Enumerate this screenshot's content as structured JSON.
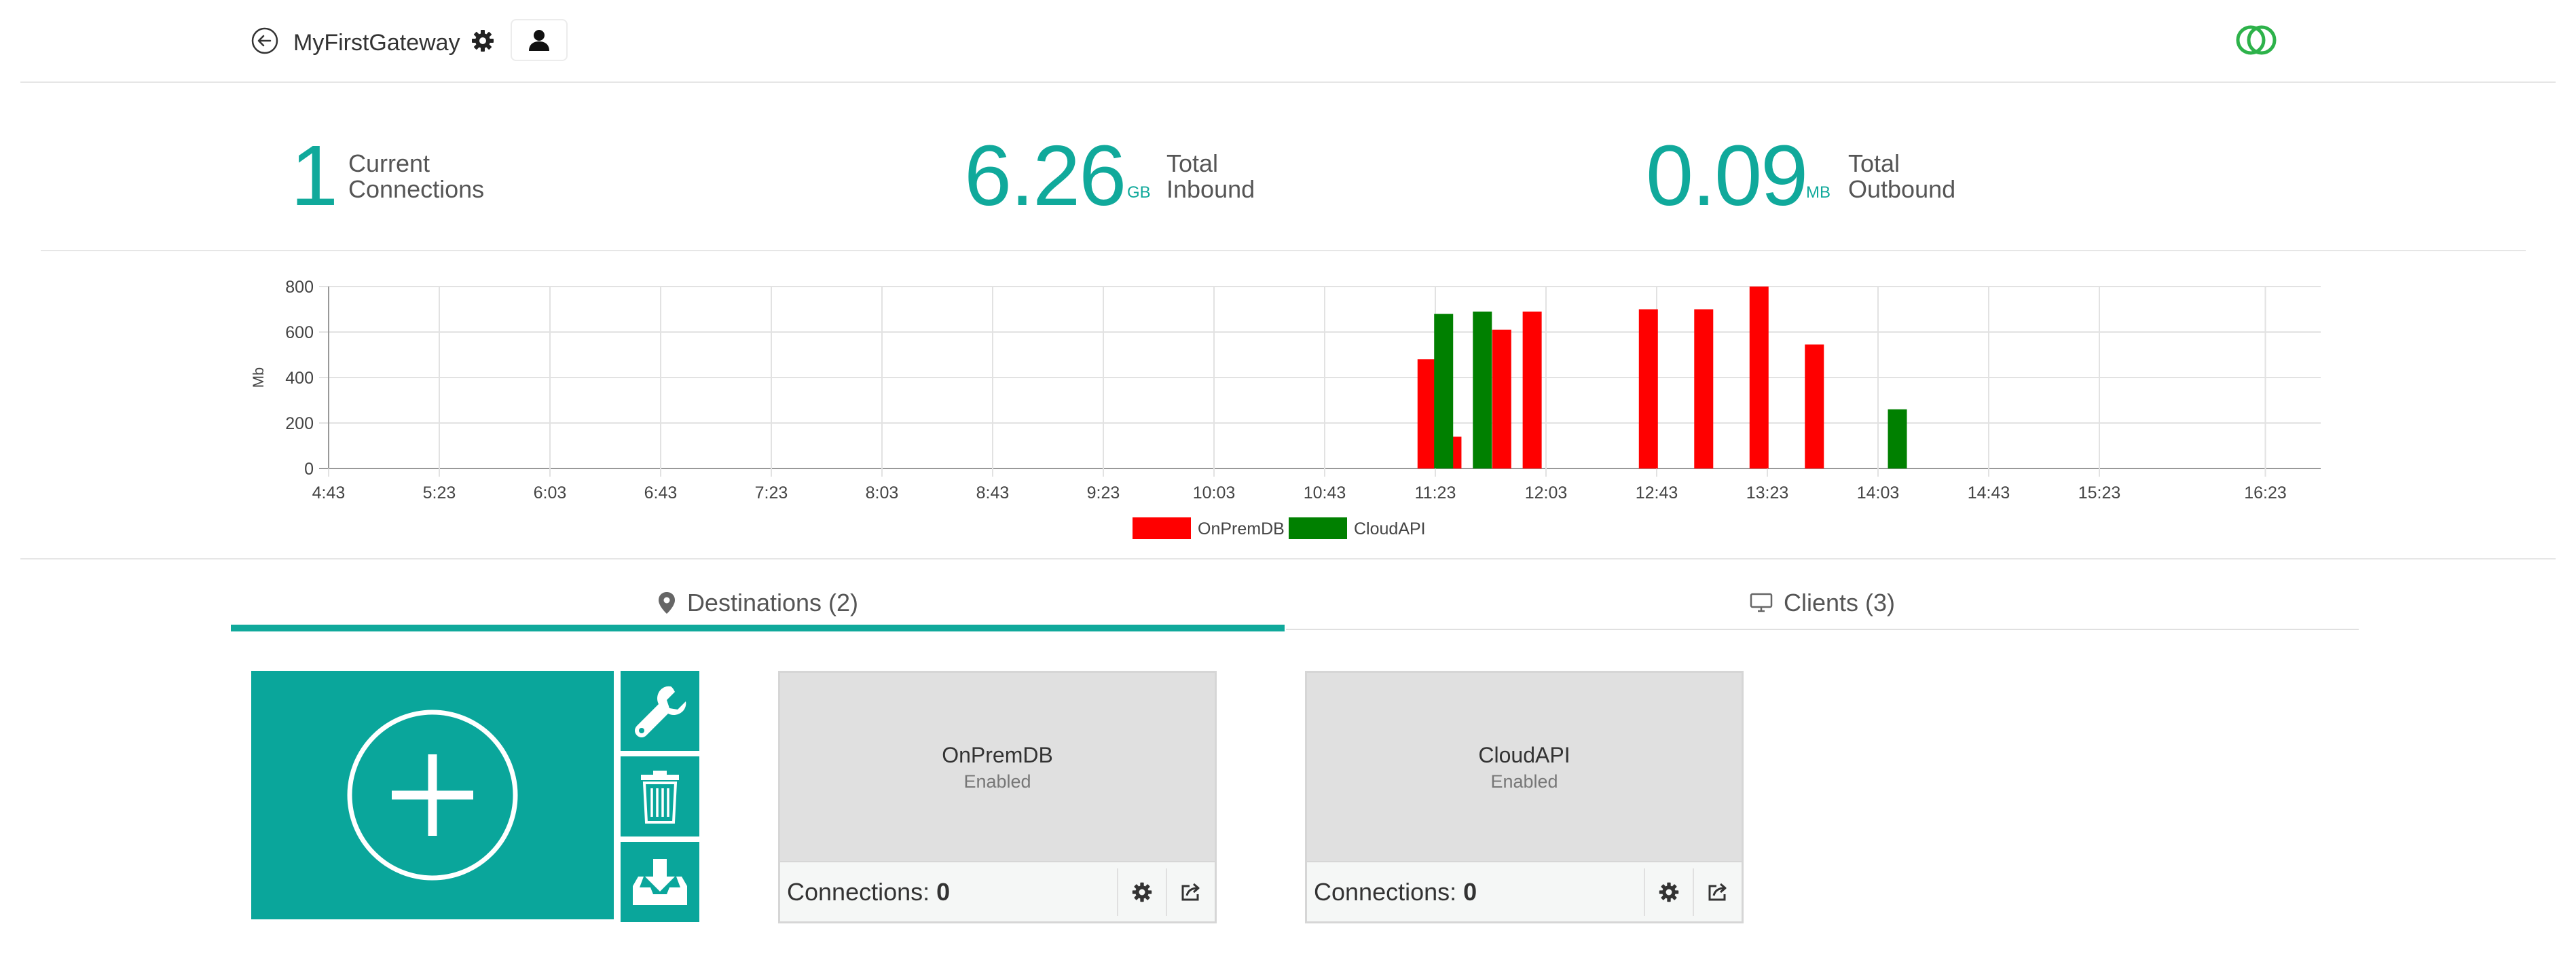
{
  "header": {
    "gateway_name": "MyFirstGateway",
    "icons": [
      "back-arrow-icon",
      "gear-icon",
      "user-icon",
      "linked-rings-logo"
    ]
  },
  "stats": {
    "connections": {
      "value": "1",
      "unit": "",
      "label_line1": "Current",
      "label_line2": "Connections"
    },
    "inbound": {
      "value": "6.26",
      "unit": "GB",
      "label_line1": "Total",
      "label_line2": "Inbound"
    },
    "outbound": {
      "value": "0.09",
      "unit": "MB",
      "label_line1": "Total",
      "label_line2": "Outbound"
    }
  },
  "chart_data": {
    "type": "bar",
    "ylabel": "Mb",
    "ylim": [
      0,
      800
    ],
    "yticks": [
      0,
      200,
      400,
      600,
      800
    ],
    "x_range_minutes": [
      283,
      1003
    ],
    "xticks": [
      {
        "label": "4:43",
        "t": 283
      },
      {
        "label": "5:23",
        "t": 323
      },
      {
        "label": "6:03",
        "t": 363
      },
      {
        "label": "6:43",
        "t": 403
      },
      {
        "label": "7:23",
        "t": 443
      },
      {
        "label": "8:03",
        "t": 483
      },
      {
        "label": "8:43",
        "t": 523
      },
      {
        "label": "9:23",
        "t": 563
      },
      {
        "label": "10:03",
        "t": 603
      },
      {
        "label": "10:43",
        "t": 643
      },
      {
        "label": "11:23",
        "t": 683
      },
      {
        "label": "12:03",
        "t": 723
      },
      {
        "label": "12:43",
        "t": 763
      },
      {
        "label": "13:23",
        "t": 803
      },
      {
        "label": "14:03",
        "t": 843
      },
      {
        "label": "14:43",
        "t": 883
      },
      {
        "label": "15:23",
        "t": 923
      },
      {
        "label": "16:23",
        "t": 983
      }
    ],
    "grid": true,
    "legend_position": "bottom-center",
    "series": [
      {
        "name": "OnPremDB",
        "color": "#ff0000",
        "points": [
          {
            "t": 680,
            "v": 480
          },
          {
            "t": 689,
            "v": 140
          },
          {
            "t": 707,
            "v": 610
          },
          {
            "t": 718,
            "v": 690
          },
          {
            "t": 760,
            "v": 700
          },
          {
            "t": 780,
            "v": 700
          },
          {
            "t": 800,
            "v": 800
          },
          {
            "t": 820,
            "v": 545
          }
        ]
      },
      {
        "name": "CloudAPI",
        "color": "#008000",
        "points": [
          {
            "t": 686,
            "v": 680
          },
          {
            "t": 700,
            "v": 690
          },
          {
            "t": 850,
            "v": 260
          }
        ]
      }
    ]
  },
  "tabs": [
    {
      "label": "Destinations (2)",
      "icon": "map-pin-icon",
      "active": true
    },
    {
      "label": "Clients (3)",
      "icon": "monitor-icon",
      "active": false
    }
  ],
  "tiles": {
    "add_icon": "plus-circle-icon",
    "side_buttons": [
      "wrench-icon",
      "trash-icon",
      "download-tray-icon"
    ]
  },
  "destinations": [
    {
      "name": "OnPremDB",
      "status": "Enabled",
      "connections_label": "Connections:",
      "connections_value": "0"
    },
    {
      "name": "CloudAPI",
      "status": "Enabled",
      "connections_label": "Connections:",
      "connections_value": "0"
    }
  ],
  "colors": {
    "accent": "#10a99b",
    "tile": "#0aa69b",
    "onprem": "#ff0000",
    "cloud": "#008000"
  }
}
